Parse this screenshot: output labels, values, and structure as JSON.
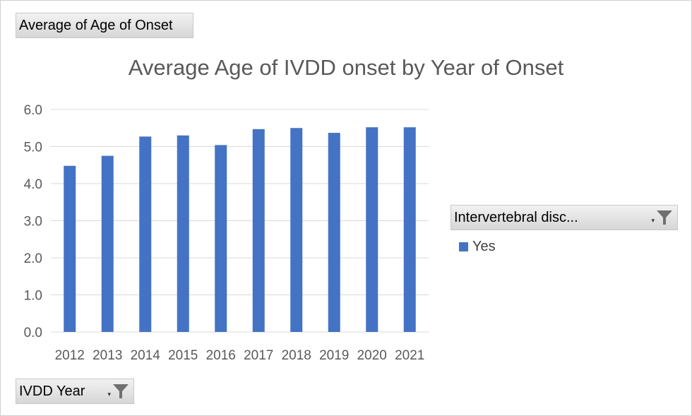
{
  "value_field": {
    "label": "Average of Age of Onset"
  },
  "axis_field": {
    "label": "IVDD Year"
  },
  "legend_field": {
    "label": "Intervertebral disc..."
  },
  "icons": {
    "filter": "filter-funnel-icon",
    "dropdown": "dropdown-arrow-icon"
  },
  "colors": {
    "bar": "#4472C4",
    "grid": "#d9d9d9",
    "axis_text": "#595959"
  },
  "chart_data": {
    "type": "bar",
    "title": "Average Age of IVDD onset by Year of Onset",
    "categories": [
      "2012",
      "2013",
      "2014",
      "2015",
      "2016",
      "2017",
      "2018",
      "2019",
      "2020",
      "2021"
    ],
    "series": [
      {
        "name": "Yes",
        "values": [
          4.48,
          4.75,
          5.27,
          5.3,
          5.04,
          5.47,
          5.5,
          5.37,
          5.52,
          5.52
        ]
      }
    ],
    "yticks": [
      "0.0",
      "1.0",
      "2.0",
      "3.0",
      "4.0",
      "5.0",
      "6.0"
    ],
    "ylim": [
      0,
      6
    ],
    "grid": true,
    "legend_position": "right"
  }
}
